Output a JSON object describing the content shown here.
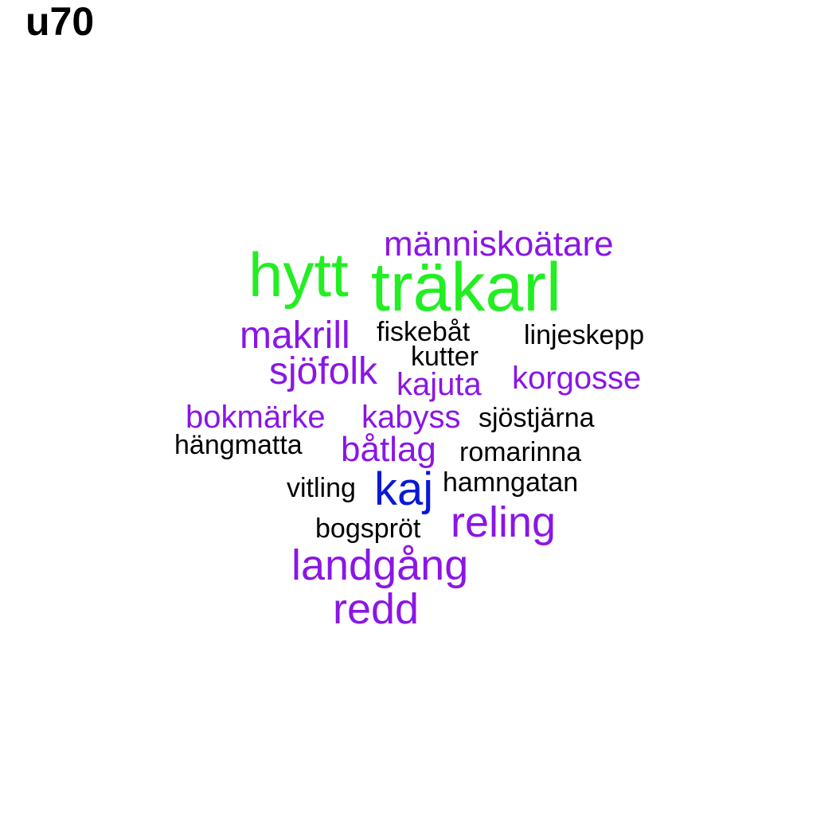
{
  "title": "u70",
  "colors": {
    "green": "#22ee22",
    "purple": "#8a16e6",
    "blue": "#0a18d8",
    "black": "#000000"
  },
  "words": [
    {
      "text": "hytt",
      "color": "green"
    },
    {
      "text": "träkarl",
      "color": "green"
    },
    {
      "text": "människoätare",
      "color": "purple"
    },
    {
      "text": "makrill",
      "color": "purple"
    },
    {
      "text": "fiskebåt",
      "color": "black"
    },
    {
      "text": "linjeskepp",
      "color": "black"
    },
    {
      "text": "kutter",
      "color": "black"
    },
    {
      "text": "sjöfolk",
      "color": "purple"
    },
    {
      "text": "kajuta",
      "color": "purple"
    },
    {
      "text": "korgosse",
      "color": "purple"
    },
    {
      "text": "bokmärke",
      "color": "purple"
    },
    {
      "text": "kabyss",
      "color": "purple"
    },
    {
      "text": "sjöstjärna",
      "color": "black"
    },
    {
      "text": "hängmatta",
      "color": "black"
    },
    {
      "text": "båtlag",
      "color": "purple"
    },
    {
      "text": "romarinna",
      "color": "black"
    },
    {
      "text": "vitling",
      "color": "black"
    },
    {
      "text": "kaj",
      "color": "blue"
    },
    {
      "text": "hamngatan",
      "color": "black"
    },
    {
      "text": "bogspröt",
      "color": "black"
    },
    {
      "text": "reling",
      "color": "purple"
    },
    {
      "text": "landgång",
      "color": "purple"
    },
    {
      "text": "redd",
      "color": "purple"
    }
  ]
}
